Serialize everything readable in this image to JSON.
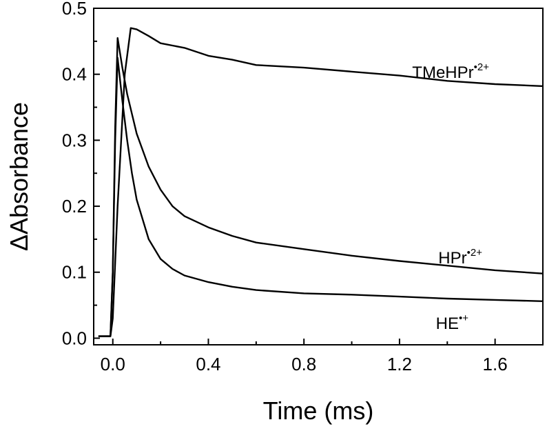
{
  "chart_data": {
    "type": "line",
    "title": "",
    "xlabel": "Time (ms)",
    "ylabel": "ΔAbsorbance",
    "xlim": [
      -0.08,
      1.8
    ],
    "ylim": [
      -0.01,
      0.5
    ],
    "xticks": [
      0.0,
      0.4,
      0.8,
      1.2,
      1.6
    ],
    "xtick_labels": [
      "0.0",
      "0.4",
      "0.8",
      "1.2",
      "1.6"
    ],
    "yticks": [
      0.0,
      0.1,
      0.2,
      0.3,
      0.4,
      0.5
    ],
    "ytick_labels": [
      "0.0",
      "0.1",
      "0.2",
      "0.3",
      "0.4",
      "0.5"
    ],
    "grid": false,
    "legend": "none",
    "series": [
      {
        "name": "TMeHPr",
        "label_sup": "•2+",
        "x": [
          -0.06,
          -0.01,
          0.0,
          0.02,
          0.05,
          0.075,
          0.1,
          0.15,
          0.2,
          0.3,
          0.4,
          0.5,
          0.6,
          0.8,
          1.0,
          1.2,
          1.4,
          1.6,
          1.8
        ],
        "y": [
          0.003,
          0.003,
          0.03,
          0.2,
          0.4,
          0.47,
          0.468,
          0.458,
          0.447,
          0.44,
          0.428,
          0.422,
          0.414,
          0.41,
          0.404,
          0.398,
          0.39,
          0.385,
          0.382
        ]
      },
      {
        "name": "HPr",
        "label_sup": "•2+",
        "x": [
          -0.06,
          -0.01,
          0.0,
          0.01,
          0.02,
          0.04,
          0.06,
          0.08,
          0.1,
          0.15,
          0.2,
          0.25,
          0.3,
          0.4,
          0.5,
          0.6,
          0.8,
          1.0,
          1.2,
          1.4,
          1.6,
          1.8
        ],
        "y": [
          0.003,
          0.003,
          0.1,
          0.32,
          0.455,
          0.41,
          0.37,
          0.34,
          0.31,
          0.26,
          0.225,
          0.2,
          0.185,
          0.168,
          0.155,
          0.145,
          0.135,
          0.125,
          0.117,
          0.11,
          0.103,
          0.098
        ]
      },
      {
        "name": "HE",
        "label_sup": "•+",
        "x": [
          -0.06,
          -0.01,
          0.0,
          0.01,
          0.02,
          0.04,
          0.06,
          0.08,
          0.1,
          0.15,
          0.2,
          0.25,
          0.3,
          0.4,
          0.5,
          0.6,
          0.8,
          1.0,
          1.2,
          1.4,
          1.6,
          1.8
        ],
        "y": [
          0.003,
          0.003,
          0.1,
          0.3,
          0.425,
          0.36,
          0.3,
          0.25,
          0.21,
          0.15,
          0.12,
          0.105,
          0.095,
          0.085,
          0.078,
          0.073,
          0.068,
          0.066,
          0.063,
          0.06,
          0.058,
          0.056
        ]
      }
    ]
  }
}
